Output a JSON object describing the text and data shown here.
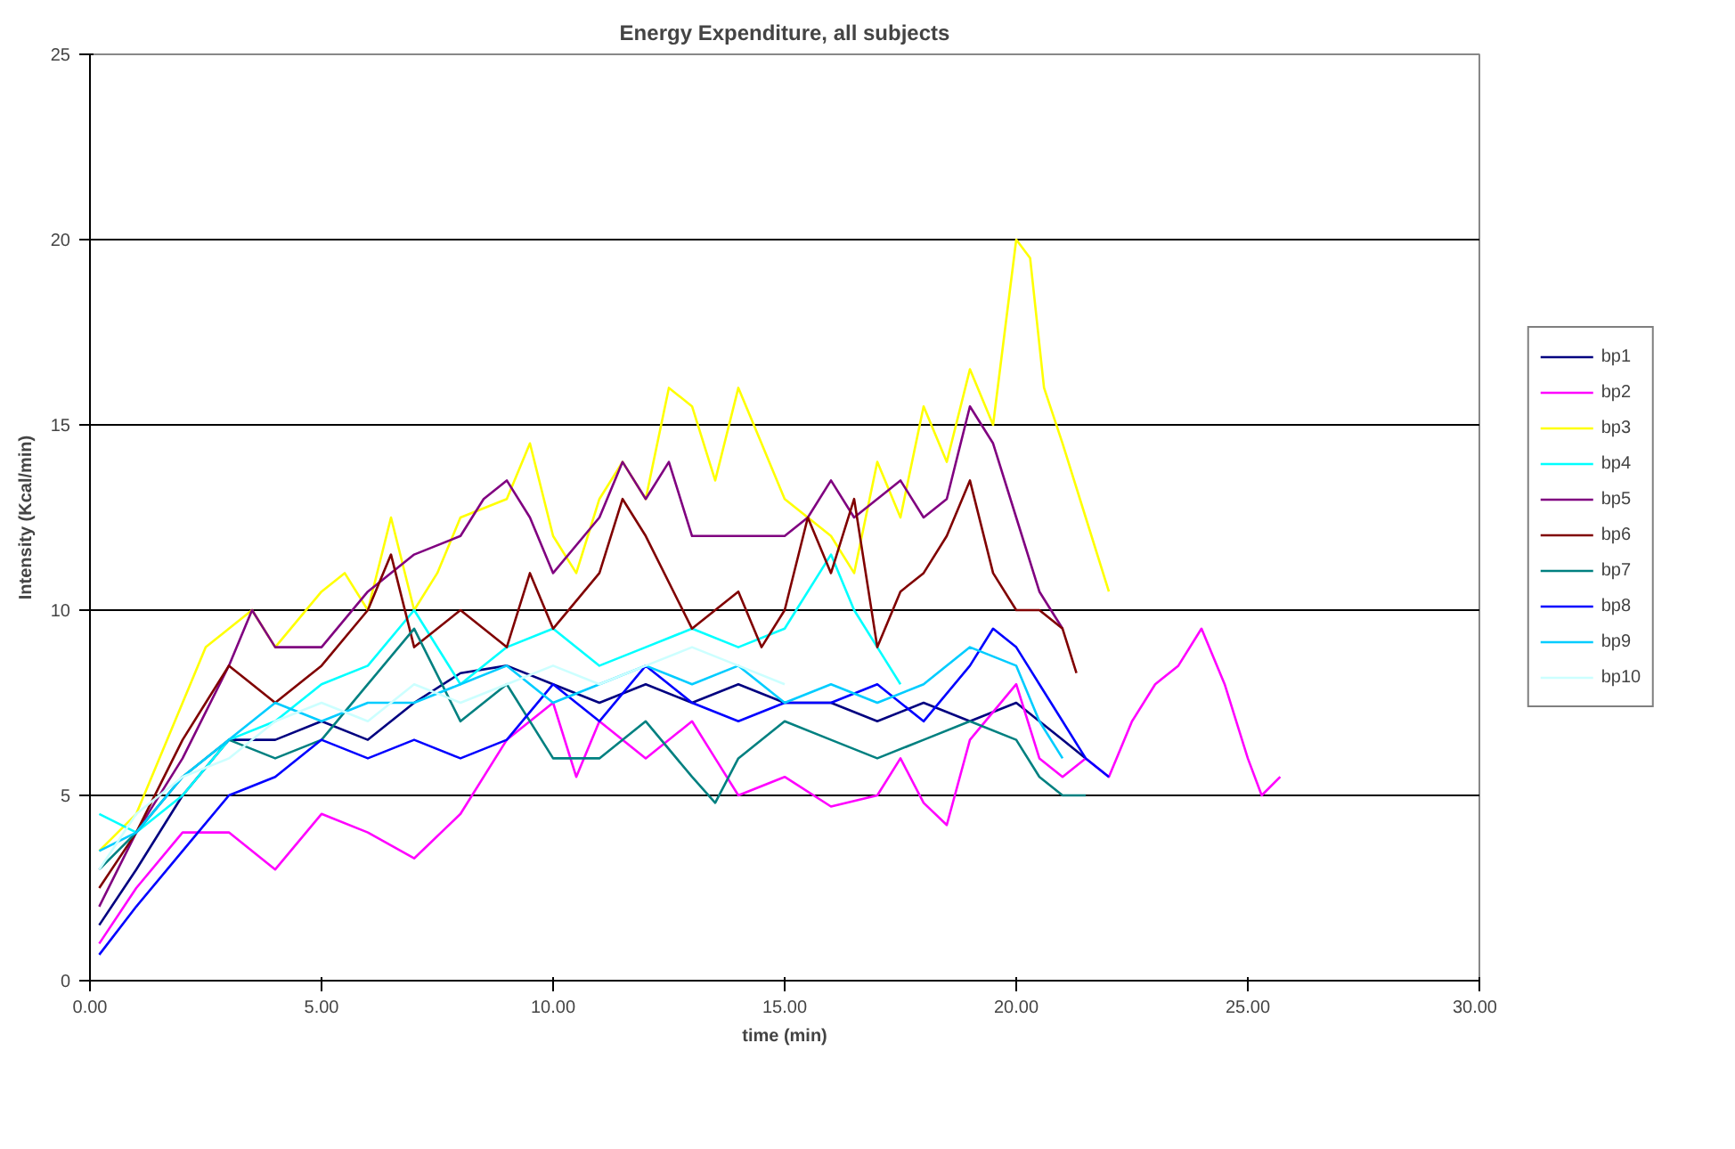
{
  "chart_data": {
    "type": "line",
    "title": "Energy Expenditure, all subjects",
    "xlabel": "time (min)",
    "ylabel": "Intensity (Kcal/min)",
    "xlim": [
      0,
      30
    ],
    "ylim": [
      0,
      25
    ],
    "xticks": [
      {
        "value": 0,
        "label": "0.00"
      },
      {
        "value": 5,
        "label": "5.00"
      },
      {
        "value": 10,
        "label": "10.00"
      },
      {
        "value": 15,
        "label": "15.00"
      },
      {
        "value": 20,
        "label": "20.00"
      },
      {
        "value": 25,
        "label": "25.00"
      },
      {
        "value": 30,
        "label": "30.00"
      }
    ],
    "yticks": [
      0,
      5,
      10,
      15,
      20,
      25
    ],
    "grid": "y",
    "legend": "right",
    "marker": "none",
    "line_style": "solid",
    "series": [
      {
        "name": "bp1",
        "color": "#000080",
        "x": [
          0.2,
          1,
          2,
          3,
          4,
          5,
          6,
          7,
          8,
          9,
          10,
          11,
          12,
          13,
          14,
          15,
          16,
          17,
          18,
          19,
          20,
          21,
          21.5
        ],
        "values": [
          1.5,
          3,
          5,
          6.5,
          6.5,
          7,
          6.5,
          7.5,
          8.3,
          8.5,
          8,
          7.5,
          8,
          7.5,
          8,
          7.5,
          7.5,
          7,
          7.5,
          7,
          7.5,
          6.5,
          6
        ]
      },
      {
        "name": "bp2",
        "color": "#ff00ff",
        "x": [
          0.2,
          1,
          2,
          3,
          4,
          5,
          6,
          7,
          8,
          9,
          10,
          10.5,
          11,
          12,
          13,
          13.5,
          14,
          15,
          16,
          17,
          17.5,
          18,
          18.5,
          19,
          20,
          20.5,
          21,
          21.5,
          22,
          22.5,
          23,
          23.5,
          24,
          24.5,
          25,
          25.3,
          25.7
        ],
        "values": [
          1,
          2.5,
          4,
          4,
          3,
          4.5,
          4,
          3.3,
          4.5,
          6.5,
          7.5,
          5.5,
          7,
          6,
          7,
          6,
          5,
          5.5,
          4.7,
          5,
          6,
          4.8,
          4.2,
          6.5,
          8,
          6,
          5.5,
          6,
          5.5,
          7,
          8,
          8.5,
          9.5,
          8,
          6,
          5,
          5.5
        ]
      },
      {
        "name": "bp3",
        "color": "#ffff00",
        "x": [
          0.2,
          1,
          2,
          2.5,
          3,
          3.5,
          4,
          5,
          5.5,
          6,
          6.5,
          7,
          7.5,
          8,
          9,
          9.5,
          10,
          10.5,
          11,
          11.5,
          12,
          12.5,
          13,
          13.5,
          14,
          14.5,
          15,
          15.5,
          16,
          16.5,
          17,
          17.5,
          18,
          18.5,
          19,
          19.5,
          20,
          20.3,
          20.6,
          21,
          21.5,
          22
        ],
        "values": [
          3.5,
          4.5,
          7.5,
          9,
          9.5,
          10,
          9,
          10.5,
          11,
          10,
          12.5,
          10,
          11,
          12.5,
          13,
          14.5,
          12,
          11,
          13,
          14,
          13,
          16,
          15.5,
          13.5,
          16,
          14.5,
          13,
          12.5,
          12,
          11,
          14,
          12.5,
          15.5,
          14,
          16.5,
          15,
          20,
          19.5,
          16,
          14.5,
          12.5,
          10.5
        ]
      },
      {
        "name": "bp4",
        "color": "#00ffff",
        "x": [
          0.2,
          1,
          2,
          3,
          4,
          5,
          6,
          7,
          8,
          9,
          10,
          11,
          12,
          13,
          14,
          15,
          16,
          16.5,
          17,
          17.5
        ],
        "values": [
          4.5,
          4,
          5,
          6.5,
          7,
          8,
          8.5,
          10,
          8,
          9,
          9.5,
          8.5,
          9,
          9.5,
          9,
          9.5,
          11.5,
          10,
          9,
          8
        ]
      },
      {
        "name": "bp5",
        "color": "#800080",
        "x": [
          0.2,
          1,
          2,
          3,
          3.5,
          4,
          5,
          6,
          7,
          8,
          8.5,
          9,
          9.5,
          10,
          11,
          11.5,
          12,
          12.5,
          13,
          14,
          15,
          15.5,
          16,
          16.5,
          17,
          17.5,
          18,
          18.5,
          19,
          19.5,
          20,
          20.5,
          21
        ],
        "values": [
          2,
          4,
          6,
          8.5,
          10,
          9,
          9,
          10.5,
          11.5,
          12,
          13,
          13.5,
          12.5,
          11,
          12.5,
          14,
          13,
          14,
          12,
          12,
          12,
          12.5,
          13.5,
          12.5,
          13,
          13.5,
          12.5,
          13,
          15.5,
          14.5,
          12.5,
          10.5,
          9.5
        ]
      },
      {
        "name": "bp6",
        "color": "#800000",
        "x": [
          0.2,
          1,
          2,
          2.5,
          3,
          4,
          5,
          6,
          6.5,
          7,
          8,
          9,
          9.5,
          10,
          11,
          11.5,
          12,
          13,
          14,
          14.5,
          15,
          15.5,
          16,
          16.5,
          17,
          17.5,
          18,
          18.5,
          19,
          19.5,
          20,
          20.5,
          21,
          21.3
        ],
        "values": [
          2.5,
          4,
          6.5,
          7.5,
          8.5,
          7.5,
          8.5,
          10,
          11.5,
          9,
          10,
          9,
          11,
          9.5,
          11,
          13,
          12,
          9.5,
          10.5,
          9,
          10,
          12.5,
          11,
          13,
          9,
          10.5,
          11,
          12,
          13.5,
          11,
          10,
          10,
          9.5,
          8.3
        ]
      },
      {
        "name": "bp7",
        "color": "#008080",
        "x": [
          0.2,
          1,
          2,
          3,
          4,
          5,
          6,
          7,
          8,
          9,
          10,
          11,
          12,
          13,
          13.5,
          14,
          15,
          16,
          17,
          18,
          19,
          20,
          20.5,
          21,
          21.5
        ],
        "values": [
          3,
          4,
          5.5,
          6.5,
          6,
          6.5,
          8,
          9.5,
          7,
          8,
          6,
          6,
          7,
          5.5,
          4.8,
          6,
          7,
          6.5,
          6,
          6.5,
          7,
          6.5,
          5.5,
          5,
          5
        ]
      },
      {
        "name": "bp8",
        "color": "#0000ff",
        "x": [
          0.2,
          1,
          2,
          3,
          4,
          5,
          6,
          7,
          8,
          9,
          10,
          11,
          12,
          13,
          14,
          15,
          16,
          17,
          18,
          19,
          19.5,
          20,
          20.5,
          21,
          21.5,
          22
        ],
        "values": [
          0.7,
          2,
          3.5,
          5,
          5.5,
          6.5,
          6,
          6.5,
          6,
          6.5,
          8,
          7,
          8.5,
          7.5,
          7,
          7.5,
          7.5,
          8,
          7,
          8.5,
          9.5,
          9,
          8,
          7,
          6,
          5.5
        ]
      },
      {
        "name": "bp9",
        "color": "#00ccff",
        "x": [
          0.2,
          1,
          2,
          3,
          4,
          5,
          6,
          7,
          8,
          9,
          10,
          11,
          12,
          13,
          14,
          15,
          16,
          17,
          18,
          19,
          20,
          20.5,
          21
        ],
        "values": [
          3.5,
          4,
          5.5,
          6.5,
          7.5,
          7,
          7.5,
          7.5,
          8,
          8.5,
          7.5,
          8,
          8.5,
          8,
          8.5,
          7.5,
          8,
          7.5,
          8,
          9,
          8.5,
          7,
          6
        ]
      },
      {
        "name": "bp10",
        "color": "#ccffff",
        "x": [
          0.2,
          1,
          2,
          3,
          4,
          5,
          6,
          7,
          8,
          9,
          10,
          11,
          12,
          13,
          14,
          15
        ],
        "values": [
          3,
          4.5,
          5.5,
          6,
          7,
          7.5,
          7,
          8,
          7.5,
          8,
          8.5,
          8,
          8.5,
          9,
          8.5,
          8
        ]
      }
    ]
  }
}
